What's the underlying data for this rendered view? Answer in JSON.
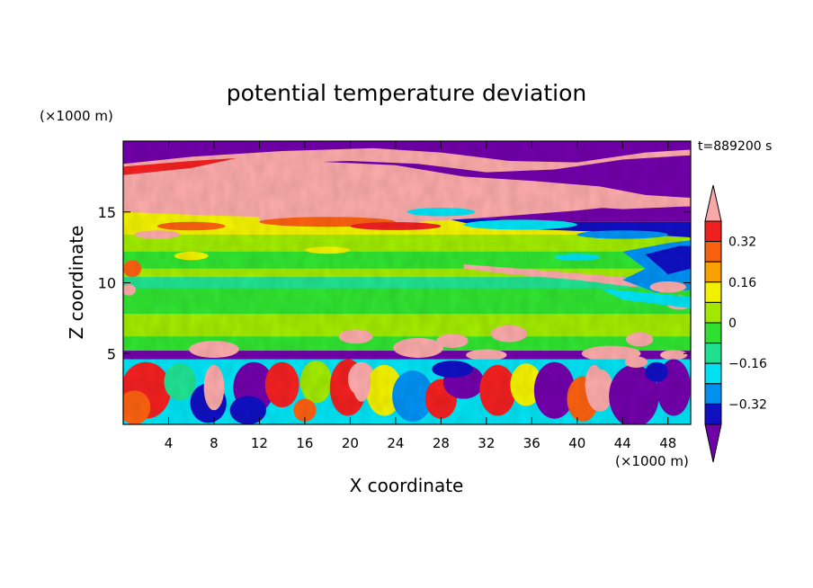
{
  "chart_data": {
    "type": "heatmap",
    "title": "potential temperature deviation",
    "xlabel": "X coordinate",
    "ylabel": "Z coordinate",
    "x_unit": "(×1000 m)",
    "y_unit": "(×1000 m)",
    "time_label": "t=889200 s",
    "xlim": [
      0,
      50
    ],
    "ylim": [
      0,
      20
    ],
    "x_ticks": [
      4,
      8,
      12,
      16,
      20,
      24,
      28,
      32,
      36,
      40,
      44,
      48
    ],
    "y_ticks": [
      5,
      10,
      15
    ],
    "colorbar": {
      "levels": [
        -0.4,
        -0.32,
        -0.24,
        -0.16,
        -0.08,
        0,
        0.08,
        0.16,
        0.24,
        0.32,
        0.4
      ],
      "labels": [
        "0.32",
        "0.16",
        "0",
        "−0.16",
        "−0.32"
      ],
      "label_values": [
        0.32,
        0.16,
        0,
        -0.16,
        -0.32
      ],
      "colors_high_to_low": [
        "#f8a8a8",
        "#f02020",
        "#f86010",
        "#f8a000",
        "#f0f000",
        "#a0e800",
        "#30e030",
        "#20e090",
        "#00e0f0",
        "#0090f0",
        "#1010c0",
        "#7000a8"
      ],
      "extend": "both"
    }
  }
}
